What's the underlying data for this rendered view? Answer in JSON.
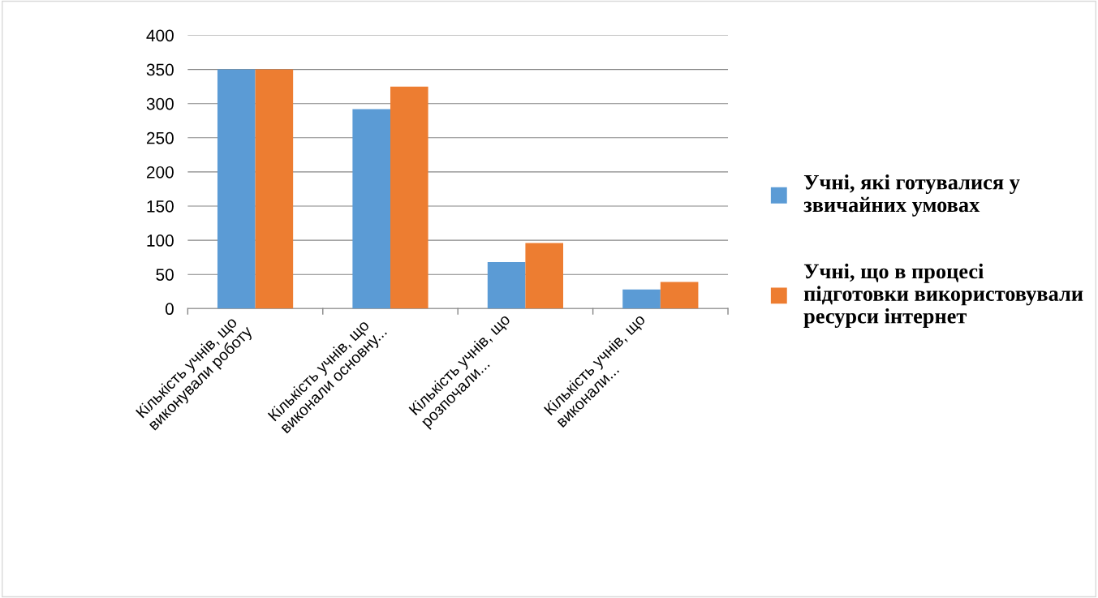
{
  "chart_data": {
    "type": "bar",
    "categories": [
      "Кількість учнів, що виконували роботу",
      "Кількість учнів, що виконали основну...",
      "Кількість учнів, що розпочали...",
      "Кількість учнів, що виконали..."
    ],
    "series": [
      {
        "name": "Учні, які готувалися у звичайних умовах",
        "color": "#5b9bd5",
        "values": [
          350,
          292,
          68,
          28
        ]
      },
      {
        "name": "Учні, що в процесі підготовки використовували ресурси інтернет",
        "color": "#ed7d31",
        "values": [
          350,
          325,
          96,
          39
        ]
      }
    ],
    "ylim": [
      0,
      400
    ],
    "yticks": [
      0,
      50,
      100,
      150,
      200,
      250,
      300,
      350,
      400
    ],
    "grid": "y",
    "legend": "right"
  }
}
